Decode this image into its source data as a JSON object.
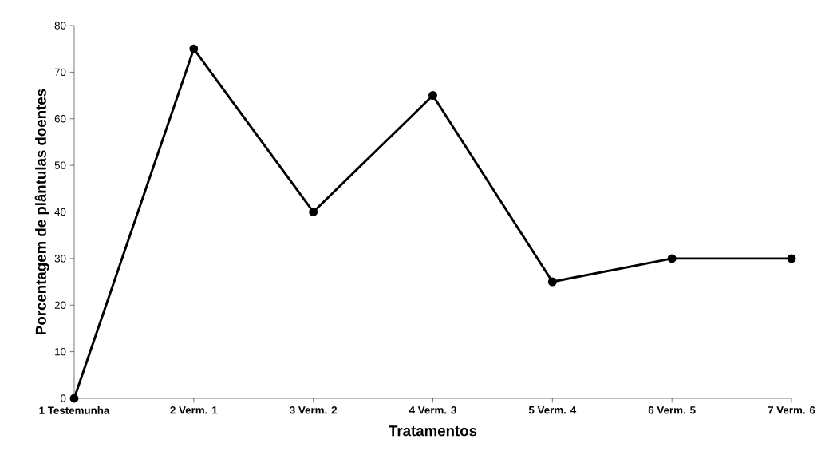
{
  "chart_data": {
    "type": "line",
    "xlabel": "Tratamentos",
    "ylabel": "Porcentagem de plântulas doentes",
    "categories": [
      "1 Testemunha",
      "2 Verm. 1",
      "3 Verm. 2",
      "4 Verm. 3",
      "5 Verm. 4",
      "6 Verm. 5",
      "7 Verm. 6"
    ],
    "values": [
      0,
      75,
      40,
      65,
      25,
      30,
      30
    ],
    "color": "#000000",
    "marker": "circle",
    "line_style": "solid",
    "ylim": [
      0,
      80
    ],
    "yticks": [
      0,
      10,
      20,
      30,
      40,
      50,
      60,
      70,
      80
    ],
    "grid": false
  }
}
